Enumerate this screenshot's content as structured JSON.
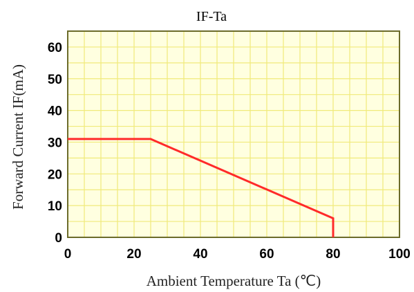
{
  "chart_data": {
    "type": "line",
    "title": "IF-Ta",
    "xlabel": "Ambient Temperature Ta (℃)",
    "ylabel": "Forward Current IF(mA)",
    "xlim": [
      0,
      100
    ],
    "ylim": [
      0,
      65
    ],
    "x_ticks": [
      0,
      20,
      40,
      60,
      80,
      100
    ],
    "y_ticks": [
      0,
      10,
      20,
      30,
      40,
      50,
      60
    ],
    "x_tick_labels": [
      "0",
      "20",
      "40",
      "60",
      "80",
      "100"
    ],
    "y_tick_labels": [
      "0",
      "10",
      "20",
      "30",
      "40",
      "50",
      "60"
    ],
    "grid": true,
    "x_minor_step": 5,
    "y_minor_step": 5,
    "series": [
      {
        "color": "#ff2a2a",
        "x": [
          0,
          25,
          80,
          80
        ],
        "y": [
          31,
          31,
          6,
          0
        ]
      }
    ],
    "colors": {
      "plot_background": "#ffffe0",
      "grid": "#f0ea7a",
      "frame": "#6b6b2a"
    }
  }
}
